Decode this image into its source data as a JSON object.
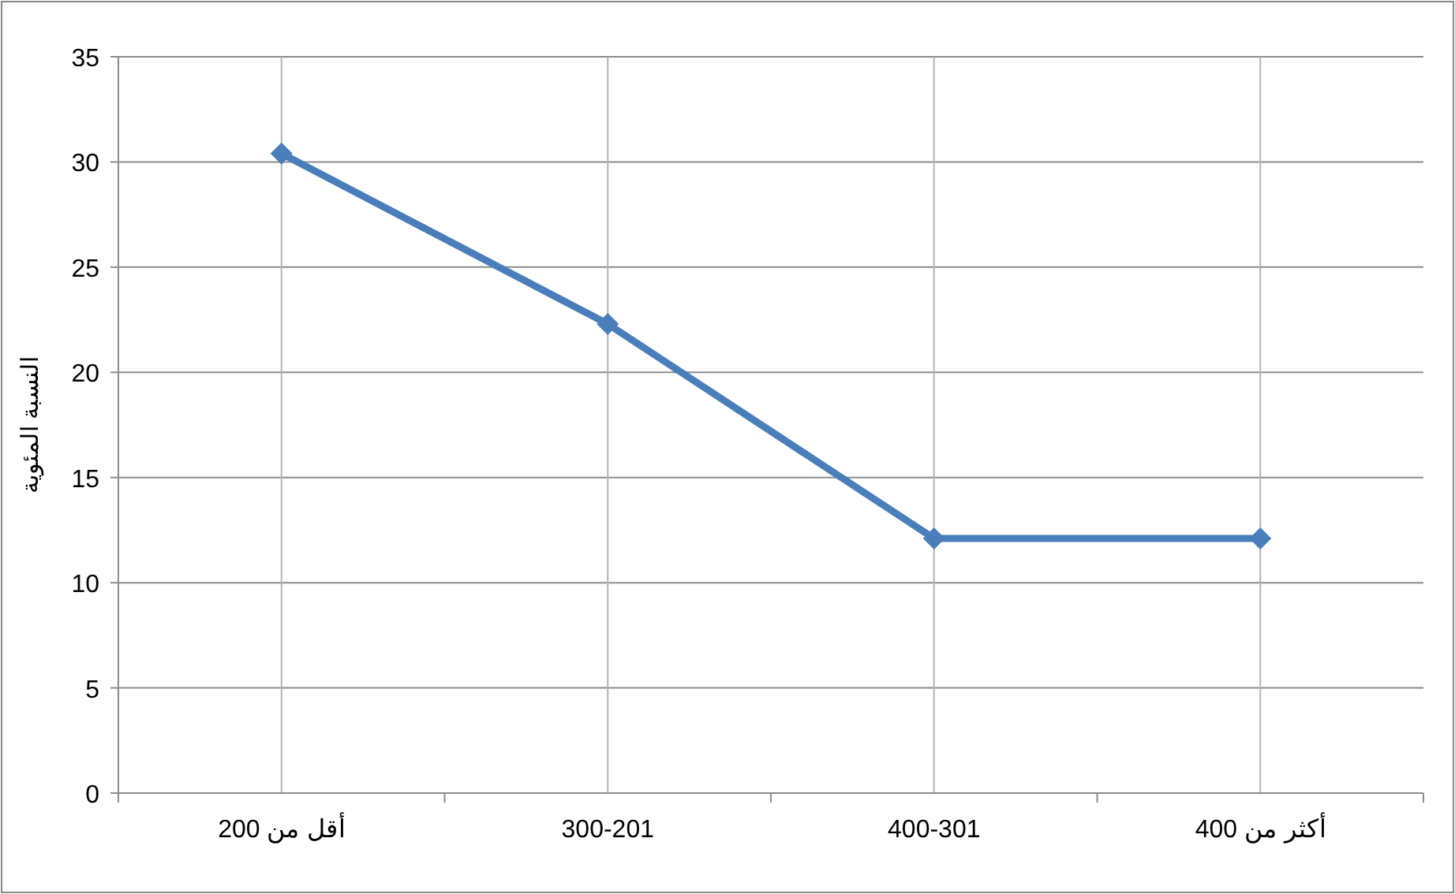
{
  "chart_data": {
    "type": "line",
    "ylabel": "النسبة المئوية",
    "categories": [
      "أقل من 200",
      "300-201",
      "400-301",
      "أكثر من 400"
    ],
    "series": [
      {
        "color": "#4a7ebb",
        "values": [
          30.4,
          22.3,
          12.1,
          12.1
        ]
      }
    ],
    "ylim": [
      0,
      35
    ],
    "yticks": [
      0,
      5,
      10,
      15,
      20,
      25,
      30,
      35
    ],
    "grid": true,
    "marker": "diamond",
    "line_style": "solid"
  }
}
